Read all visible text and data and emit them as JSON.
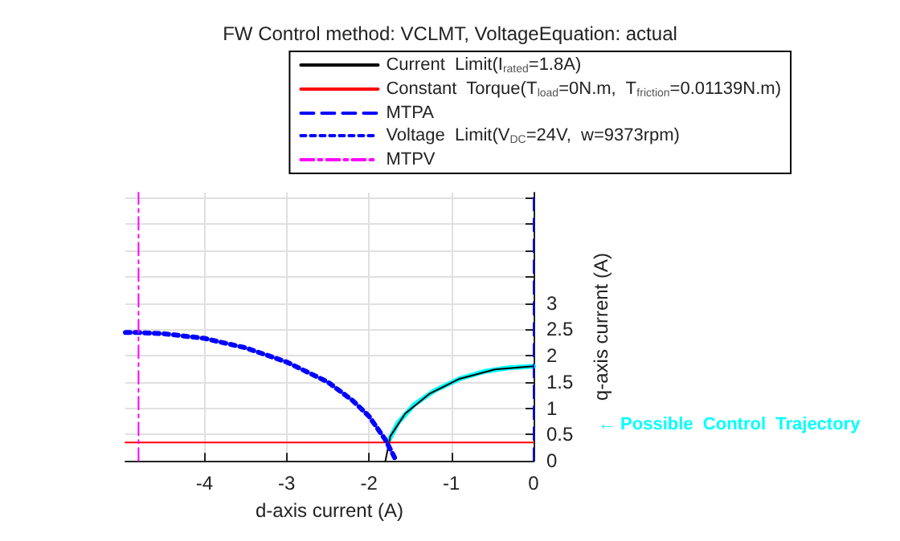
{
  "chart_data": {
    "type": "line",
    "title": "FW Control method: VCLMT, VoltageEquation: actual",
    "xlabel": "d-axis current (A)",
    "ylabel": "q-axis current (A)",
    "xlim": [
      -4.96,
      0
    ],
    "xticks": [
      -4,
      -3,
      -2,
      -1,
      0
    ],
    "ylim": [
      0,
      5.1
    ],
    "yticks": [
      0,
      0.5,
      1,
      1.5,
      2,
      2.5,
      3,
      {
        "value": 3.5,
        "label": null
      },
      {
        "value": 4,
        "label": null
      },
      {
        "value": 4.5,
        "label": null
      },
      {
        "value": 5,
        "label": null
      }
    ],
    "grid": true,
    "legend": "top right",
    "marker": "none",
    "series": [
      {
        "name": "Current  Limit(I$_{rated}$=1.8A)",
        "color": "#000000",
        "line_style": "solid",
        "x": [
          0,
          -0.47,
          -0.9,
          -1.27,
          -1.56,
          -1.74,
          -1.8
        ],
        "values": [
          1.8,
          1.74,
          1.56,
          1.27,
          0.9,
          0.47,
          0
        ]
      },
      {
        "name": "Constant  Torque(T$_{load}$=0N.m,  T$_{friction}$=0.01139N.m)",
        "color": "#ff0000",
        "line_style": "solid",
        "x": [
          -4.96,
          0
        ],
        "values": [
          0.35,
          0.35
        ]
      },
      {
        "name": "MTPA",
        "color": "#0000ff",
        "line_style": "dashed",
        "x": [
          0,
          0
        ],
        "values": [
          0,
          5.1
        ]
      },
      {
        "name": "Voltage  Limit(V$_{DC}$=24V,  w=9373rpm)",
        "color": "#0000ff",
        "line_style": "dotted",
        "x": [
          -4.96,
          -4.8,
          -4.5,
          -4,
          -3.5,
          -3,
          -2.5,
          -2.2,
          -2,
          -1.8,
          -1.7,
          -1.67
        ],
        "values": [
          2.44,
          2.44,
          2.42,
          2.33,
          2.15,
          1.88,
          1.5,
          1.15,
          0.85,
          0.4,
          0.1,
          0
        ]
      },
      {
        "name": "MTPV",
        "color": "#ff00ff",
        "line_style": "dashdot",
        "x": [
          -4.8,
          -4.8
        ],
        "values": [
          0,
          5.1
        ]
      },
      {
        "color": "#00ffff",
        "line_style": "solid",
        "x": [
          -1.77,
          -1.65,
          -1.45,
          -1.2,
          -0.9,
          -0.6,
          -0.3,
          0
        ],
        "values": [
          0.35,
          0.72,
          1.07,
          1.34,
          1.56,
          1.7,
          1.77,
          1.8
        ]
      }
    ],
    "annotations": [
      "← Possible  Control  Trajectory"
    ]
  }
}
